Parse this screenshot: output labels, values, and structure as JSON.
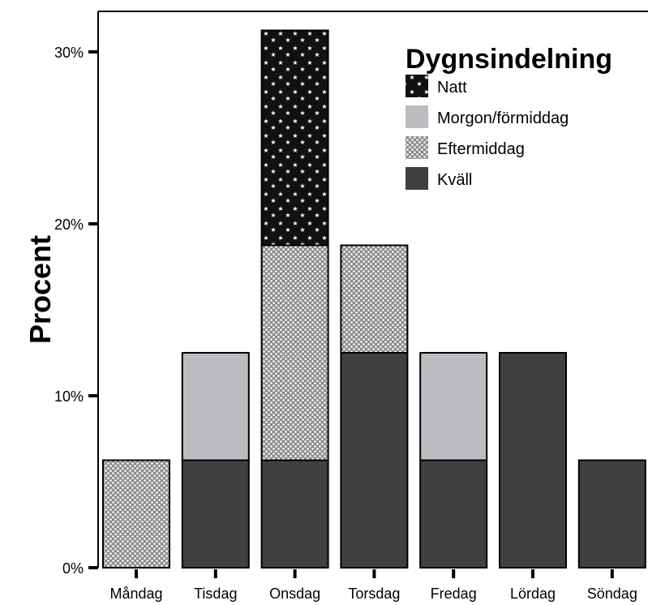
{
  "chart_data": {
    "type": "bar",
    "stacked": true,
    "title": "",
    "xlabel": "",
    "ylabel": "Procent",
    "ylim": [
      0,
      32
    ],
    "yticks": [
      0,
      10,
      20,
      30
    ],
    "ytick_labels": [
      "0%",
      "10%",
      "20%",
      "30%"
    ],
    "grid": false,
    "legend": {
      "title": "Dygnsindelning",
      "placement": "top-right",
      "entries": [
        "Natt",
        "Morgon/förmiddag",
        "Eftermiddag",
        "Kväll"
      ]
    },
    "categories": [
      "Måndag",
      "Tisdag",
      "Onsdag",
      "Torsdag",
      "Fredag",
      "Lördag",
      "Söndag"
    ],
    "series": [
      {
        "name": "Kväll",
        "key": "kvall",
        "color": "#404040",
        "values": [
          0,
          6.25,
          6.25,
          12.5,
          6.25,
          12.5,
          6.25
        ]
      },
      {
        "name": "Eftermiddag",
        "key": "eftermiddag",
        "color": "#9a9a9a",
        "values": [
          6.25,
          0,
          12.5,
          6.25,
          0,
          0,
          0
        ]
      },
      {
        "name": "Morgon/förmiddag",
        "key": "morgon",
        "color": "#bcbdc0",
        "values": [
          0,
          6.25,
          0,
          0,
          6.25,
          0,
          0
        ]
      },
      {
        "name": "Natt",
        "key": "natt",
        "color": "#1a1a1a",
        "values": [
          0,
          0,
          12.5,
          0,
          0,
          0,
          0
        ]
      }
    ]
  }
}
